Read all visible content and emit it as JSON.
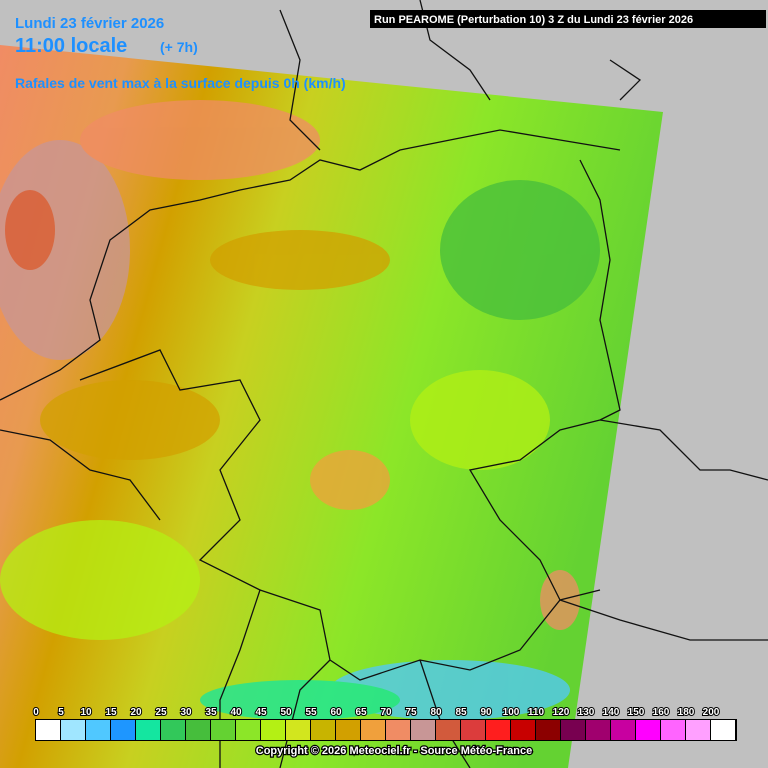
{
  "header": {
    "date": "Lundi 23 février 2026",
    "time": "11:00 locale",
    "offset": "(+ 7h)",
    "parameter": "Rafales de vent max à la surface depuis 0h (km/h)",
    "run": "Run PEAROME (Perturbation 10) 3 Z du Lundi 23 février 2026"
  },
  "legend": {
    "ticks": [
      0,
      5,
      10,
      15,
      20,
      25,
      30,
      35,
      40,
      45,
      50,
      55,
      60,
      65,
      70,
      75,
      80,
      85,
      90,
      100,
      110,
      120,
      130,
      140,
      150,
      160,
      180,
      200
    ],
    "colors": [
      "#ffffff",
      "#a0e6ff",
      "#50c8ff",
      "#1e96ff",
      "#14e6a0",
      "#32c85a",
      "#46be3c",
      "#64d232",
      "#8ce628",
      "#b4f014",
      "#d2e61e",
      "#c8b400",
      "#d2a000",
      "#f0a03c",
      "#f08c64",
      "#c89696",
      "#d25a3c",
      "#dc3c3c",
      "#ff1e1e",
      "#c80000",
      "#8c0000",
      "#780050",
      "#a0006e",
      "#c800a0",
      "#ff00ff",
      "#ff64ff",
      "#ffa0ff",
      "#ffffff"
    ]
  },
  "footer": {
    "copyright": "Copyright © 2026 Meteociel.fr - Source Météo-France"
  }
}
